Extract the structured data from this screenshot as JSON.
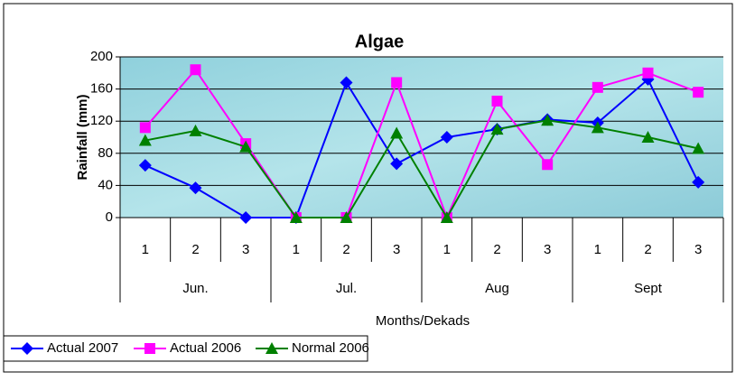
{
  "chart_data": {
    "type": "line",
    "title": "Algae",
    "y_label": "Rainfall (mm)",
    "x_label": "Months/Dekads",
    "categories": [
      "1",
      "2",
      "3",
      "1",
      "2",
      "3",
      "1",
      "2",
      "3",
      "1",
      "2",
      "3"
    ],
    "groups": [
      "Jun.",
      "Jul.",
      "Aug",
      "Sept"
    ],
    "series": [
      {
        "name": "Actual 2007",
        "color": "#0000ff",
        "marker": "diamond",
        "values": [
          65,
          37,
          0,
          0,
          168,
          67,
          100,
          110,
          122,
          118,
          172,
          44
        ]
      },
      {
        "name": "Actual 2006",
        "color": "#ff00ff",
        "marker": "square",
        "values": [
          112,
          184,
          92,
          0,
          0,
          168,
          0,
          145,
          66,
          162,
          180,
          156
        ]
      },
      {
        "name": "Normal 2006",
        "color": "#008000",
        "marker": "triangle",
        "values": [
          96,
          108,
          88,
          0,
          0,
          105,
          0,
          110,
          121,
          112,
          100,
          86
        ]
      }
    ],
    "ylim": [
      0,
      200
    ],
    "yticks": [
      0,
      40,
      80,
      120,
      160,
      200
    ],
    "grid": true,
    "legend": "bottom-left"
  }
}
